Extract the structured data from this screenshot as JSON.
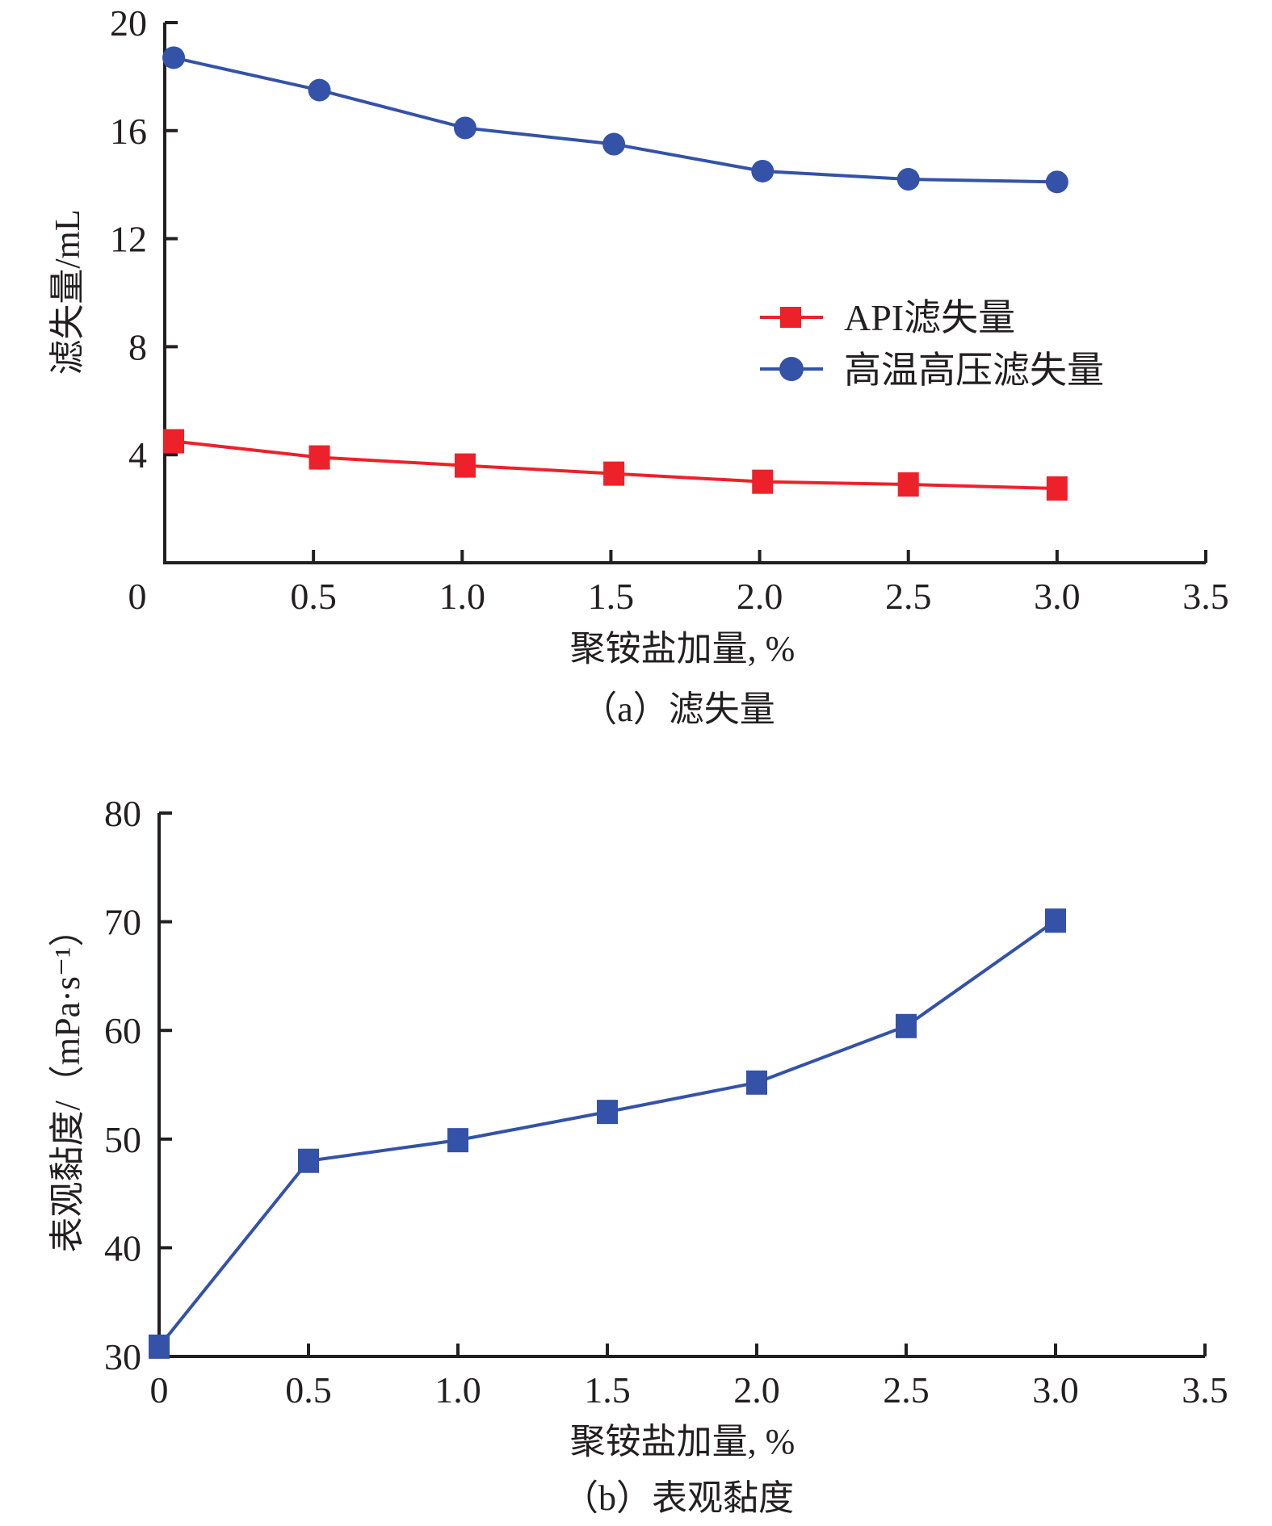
{
  "chart_data": [
    {
      "id": "a",
      "type": "line",
      "caption": "（a）滤失量",
      "xlabel": "聚铵盐加量, %",
      "ylabel": "滤失量/mL",
      "xlim": [
        0,
        3.5
      ],
      "ylim": [
        0,
        20
      ],
      "x_ticks": [
        0,
        0.5,
        1.0,
        1.5,
        2.0,
        2.5,
        3.0,
        3.5
      ],
      "x_tick_labels": [
        "0",
        "0.5",
        "1.0",
        "1.5",
        "2.0",
        "2.5",
        "3.0",
        "3.5"
      ],
      "y_ticks": [
        4,
        8,
        12,
        16,
        20
      ],
      "y_tick_labels": [
        "4",
        "8",
        "12",
        "16",
        "20"
      ],
      "grid": false,
      "legend_position": "center-right",
      "series": [
        {
          "name": "API滤失量",
          "marker": "square",
          "color": "#ED2129",
          "x": [
            0.03,
            0.52,
            1.01,
            1.51,
            2.01,
            2.5,
            3.0
          ],
          "values": [
            4.5,
            3.9,
            3.6,
            3.3,
            3.0,
            2.9,
            2.75
          ]
        },
        {
          "name": "高温高压滤失量",
          "marker": "circle",
          "color": "#3352A8",
          "x": [
            0.03,
            0.52,
            1.01,
            1.51,
            2.01,
            2.5,
            3.0
          ],
          "values": [
            18.7,
            17.5,
            16.1,
            15.5,
            14.5,
            14.2,
            14.1
          ]
        }
      ]
    },
    {
      "id": "b",
      "type": "line",
      "caption": "（b）表观黏度",
      "xlabel": "聚铵盐加量, %",
      "ylabel": "表观黏度/（mPa·s⁻¹）",
      "xlim": [
        0,
        3.5
      ],
      "ylim": [
        30,
        80
      ],
      "x_ticks": [
        0,
        0.5,
        1.0,
        1.5,
        2.0,
        2.5,
        3.0,
        3.5
      ],
      "x_tick_labels": [
        "0",
        "0.5",
        "1.0",
        "1.5",
        "2.0",
        "2.5",
        "3.0",
        "3.5"
      ],
      "y_ticks": [
        30,
        40,
        50,
        60,
        70,
        80
      ],
      "y_tick_labels": [
        "30",
        "40",
        "50",
        "60",
        "70",
        "80"
      ],
      "grid": false,
      "series": [
        {
          "name": "表观黏度",
          "marker": "square",
          "color": "#3352A8",
          "x": [
            0,
            0.5,
            1.0,
            1.5,
            2.0,
            2.5,
            3.0
          ],
          "values": [
            30.9,
            48.0,
            49.9,
            52.5,
            55.2,
            60.4,
            70.1
          ]
        }
      ]
    }
  ]
}
